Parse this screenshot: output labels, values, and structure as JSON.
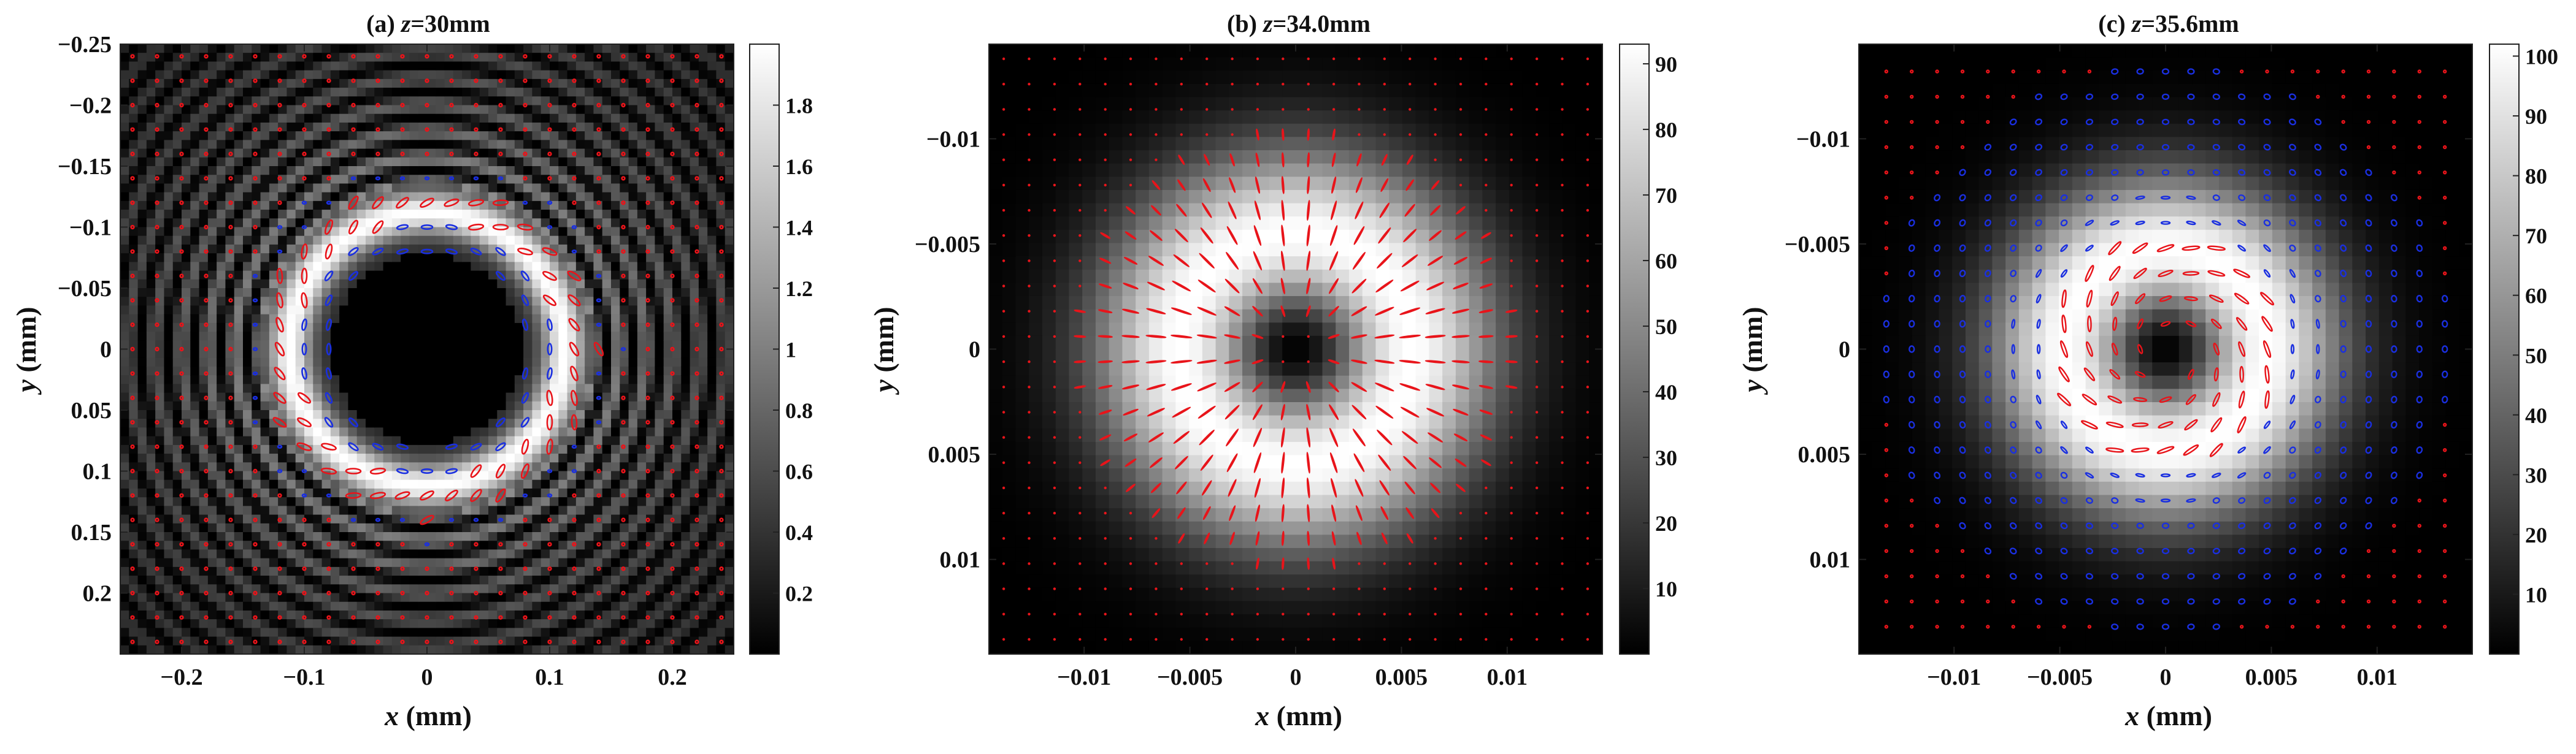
{
  "chart_data": [
    {
      "type": "heatmap",
      "panel_label": "(a)",
      "title_var": "z",
      "title_value": "=30mm",
      "xlabel_var": "x",
      "xlabel_unit": " (mm)",
      "ylabel_var": "y",
      "ylabel_unit": " (mm)",
      "xlim": [
        -0.25,
        0.25
      ],
      "ylim": [
        -0.25,
        0.25
      ],
      "y_reversed": true,
      "x_ticks": [
        -0.2,
        -0.1,
        0,
        0.1,
        0.2
      ],
      "x_tick_labels": [
        "−0.2",
        "−0.1",
        "0",
        "0.1",
        "0.2"
      ],
      "y_ticks": [
        -0.25,
        -0.2,
        -0.15,
        -0.1,
        -0.05,
        0,
        0.05,
        0.1,
        0.15,
        0.2
      ],
      "y_tick_labels": [
        "−0.25",
        "−0.2",
        "−0.15",
        "−0.1",
        "−0.05",
        "0",
        "0.05",
        "0.1",
        "0.15",
        "0.2"
      ],
      "colorbar": {
        "lim": [
          0,
          2.0
        ],
        "ticks": [
          0.2,
          0.4,
          0.6,
          0.8,
          1,
          1.2,
          1.4,
          1.6,
          1.8
        ],
        "tick_labels": [
          "0.2",
          "0.4",
          "0.6",
          "0.8",
          "1",
          "1.2",
          "1.4",
          "1.6",
          "1.8"
        ]
      },
      "intensity_pattern": "hollow beam with dark core (radius 0.08) and concentric interference rings; peak ring at r≈0.11",
      "polarization": "red right-handed ellipses on bright outer ring, blue left-handed ellipses on inner ring, red dots elsewhere"
    },
    {
      "type": "heatmap",
      "panel_label": "(b)",
      "title_var": "z",
      "title_value": "=34.0mm",
      "xlabel_var": "x",
      "xlabel_unit": " (mm)",
      "ylabel_var": "y",
      "ylabel_unit": " (mm)",
      "xlim": [
        -0.0145,
        0.0145
      ],
      "ylim": [
        -0.0145,
        0.0145
      ],
      "y_reversed": true,
      "x_ticks": [
        -0.01,
        -0.005,
        0,
        0.005,
        0.01
      ],
      "x_tick_labels": [
        "−0.01",
        "−0.005",
        "0",
        "0.005",
        "0.01"
      ],
      "y_ticks": [
        -0.01,
        -0.005,
        0,
        0.005,
        0.01
      ],
      "y_tick_labels": [
        "−0.01",
        "−0.005",
        "0",
        "0.005",
        "0.01"
      ],
      "colorbar": {
        "lim": [
          0,
          93
        ],
        "ticks": [
          10,
          20,
          30,
          40,
          50,
          60,
          70,
          80,
          90
        ],
        "tick_labels": [
          "10",
          "20",
          "30",
          "40",
          "50",
          "60",
          "70",
          "80",
          "90"
        ]
      },
      "intensity_pattern": "doughnut beam with dark core; ring peak at r≈0.0055",
      "polarization": "red radially oriented linear polarization lines over the bright ring, red dots in dark region"
    },
    {
      "type": "heatmap",
      "panel_label": "(c)",
      "title_var": "z",
      "title_value": "=35.6mm",
      "xlabel_var": "x",
      "xlabel_unit": " (mm)",
      "ylabel_var": "y",
      "ylabel_unit": " (mm)",
      "xlim": [
        -0.0145,
        0.0145
      ],
      "ylim": [
        -0.0145,
        0.0145
      ],
      "y_reversed": true,
      "x_ticks": [
        -0.01,
        -0.005,
        0,
        0.005,
        0.01
      ],
      "x_tick_labels": [
        "−0.01",
        "−0.005",
        "0",
        "0.005",
        "0.01"
      ],
      "y_ticks": [
        -0.01,
        -0.005,
        0,
        0.005,
        0.01
      ],
      "y_tick_labels": [
        "−0.01",
        "−0.005",
        "0",
        "0.005",
        "0.01"
      ],
      "colorbar": {
        "lim": [
          0,
          102
        ],
        "ticks": [
          10,
          20,
          30,
          40,
          50,
          60,
          70,
          80,
          90,
          100
        ],
        "tick_labels": [
          "10",
          "20",
          "30",
          "40",
          "50",
          "60",
          "70",
          "80",
          "90",
          "100"
        ]
      },
      "intensity_pattern": "broad doughnut beam with dark core; ring peak at r≈0.005",
      "polarization": "red elliptical polarization forming inner ring near r≈0.004, blue elliptical polarization in outer region, tilted ellipses (vortex-like)"
    }
  ]
}
